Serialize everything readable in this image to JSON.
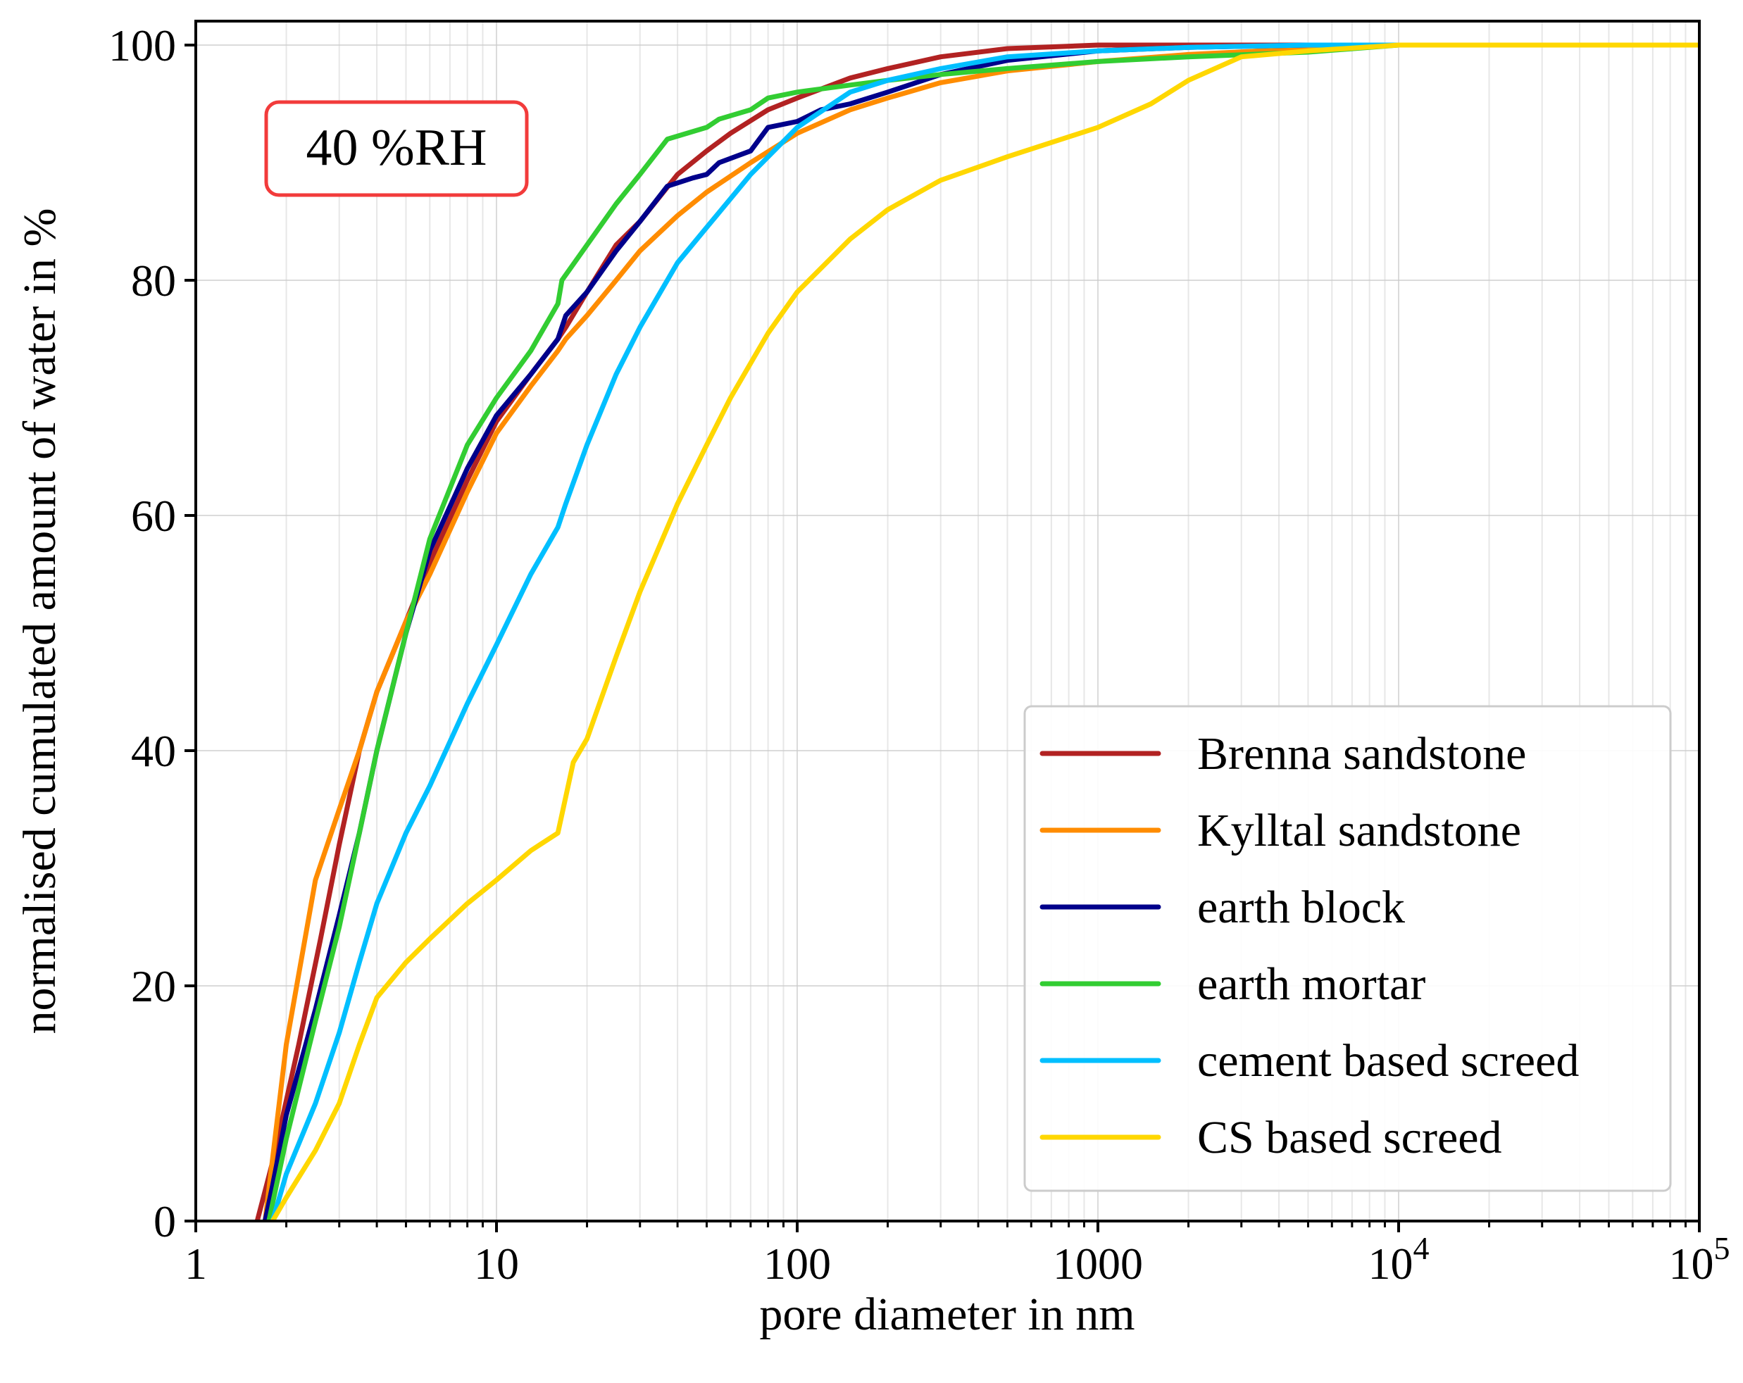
{
  "chart_data": {
    "type": "line",
    "annotation": "40 %RH",
    "xlabel": "pore diameter in nm",
    "ylabel": "normalised cumulated amount of water in %",
    "xscale": "log",
    "xlim": [
      1,
      100000
    ],
    "ylim": [
      0,
      100
    ],
    "grid": true,
    "legend_position": "lower-right",
    "x_ticks": [
      {
        "value": 1,
        "label": "1"
      },
      {
        "value": 10,
        "label": "10"
      },
      {
        "value": 100,
        "label": "100"
      },
      {
        "value": 1000,
        "label": "1000"
      },
      {
        "value": 10000,
        "label": "10",
        "exp": "4"
      },
      {
        "value": 100000,
        "label": "10",
        "exp": "5"
      }
    ],
    "y_ticks": [
      {
        "value": 0,
        "label": "0"
      },
      {
        "value": 20,
        "label": "20"
      },
      {
        "value": 40,
        "label": "40"
      },
      {
        "value": 60,
        "label": "60"
      },
      {
        "value": 80,
        "label": "80"
      },
      {
        "value": 100,
        "label": "100"
      }
    ],
    "series": [
      {
        "name": "Brenna sandstone",
        "color": "#b22222",
        "points": [
          [
            1.6,
            0
          ],
          [
            1.8,
            5
          ],
          [
            2.2,
            15
          ],
          [
            2.6,
            24
          ],
          [
            3.0,
            32
          ],
          [
            3.5,
            40
          ],
          [
            4.0,
            45
          ],
          [
            5.0,
            51
          ],
          [
            6.0,
            56
          ],
          [
            8.0,
            63
          ],
          [
            10,
            68
          ],
          [
            13,
            72
          ],
          [
            16,
            75
          ],
          [
            17,
            76
          ],
          [
            20,
            79
          ],
          [
            25,
            83
          ],
          [
            30,
            85
          ],
          [
            40,
            89
          ],
          [
            50,
            91
          ],
          [
            60,
            92.5
          ],
          [
            80,
            94.5
          ],
          [
            100,
            95.5
          ],
          [
            150,
            97.2
          ],
          [
            200,
            98
          ],
          [
            300,
            99
          ],
          [
            500,
            99.7
          ],
          [
            1000,
            100
          ],
          [
            100000,
            100
          ]
        ]
      },
      {
        "name": "Kylltal sandstone",
        "color": "#ff8c00",
        "points": [
          [
            1.7,
            0
          ],
          [
            2.0,
            15
          ],
          [
            2.5,
            29
          ],
          [
            3.0,
            35
          ],
          [
            3.5,
            40
          ],
          [
            4.0,
            45
          ],
          [
            5.0,
            51
          ],
          [
            6.0,
            55
          ],
          [
            8.0,
            62
          ],
          [
            10,
            67
          ],
          [
            13,
            71
          ],
          [
            16,
            74
          ],
          [
            17,
            75
          ],
          [
            20,
            77
          ],
          [
            25,
            80
          ],
          [
            30,
            82.5
          ],
          [
            40,
            85.5
          ],
          [
            50,
            87.5
          ],
          [
            70,
            90
          ],
          [
            100,
            92.5
          ],
          [
            150,
            94.5
          ],
          [
            200,
            95.5
          ],
          [
            300,
            96.8
          ],
          [
            500,
            97.8
          ],
          [
            1000,
            98.6
          ],
          [
            2000,
            99.2
          ],
          [
            5000,
            99.7
          ],
          [
            10000,
            100
          ],
          [
            100000,
            100
          ]
        ]
      },
      {
        "name": "earth block",
        "color": "#00008b",
        "points": [
          [
            1.7,
            0
          ],
          [
            1.8,
            3
          ],
          [
            2.0,
            9
          ],
          [
            2.5,
            18
          ],
          [
            3.0,
            26
          ],
          [
            3.5,
            33
          ],
          [
            4.0,
            40
          ],
          [
            5.0,
            50
          ],
          [
            6.0,
            57
          ],
          [
            8.0,
            64
          ],
          [
            10,
            68.5
          ],
          [
            13,
            72
          ],
          [
            16,
            75
          ],
          [
            17,
            77
          ],
          [
            20,
            79
          ],
          [
            25,
            82.5
          ],
          [
            30,
            85
          ],
          [
            37,
            88
          ],
          [
            45,
            88.7
          ],
          [
            50,
            89
          ],
          [
            55,
            90
          ],
          [
            70,
            91
          ],
          [
            80,
            93
          ],
          [
            100,
            93.5
          ],
          [
            120,
            94.5
          ],
          [
            150,
            95
          ],
          [
            200,
            96
          ],
          [
            300,
            97.5
          ],
          [
            500,
            98.7
          ],
          [
            1000,
            99.5
          ],
          [
            2000,
            99.8
          ],
          [
            5000,
            100
          ],
          [
            100000,
            100
          ]
        ]
      },
      {
        "name": "earth mortar",
        "color": "#32cd32",
        "points": [
          [
            1.75,
            0
          ],
          [
            2.0,
            7
          ],
          [
            2.5,
            17
          ],
          [
            3.0,
            25
          ],
          [
            3.5,
            33
          ],
          [
            4.0,
            40
          ],
          [
            5.0,
            50
          ],
          [
            6.0,
            58
          ],
          [
            8.0,
            66
          ],
          [
            10,
            70
          ],
          [
            13,
            74
          ],
          [
            16,
            78
          ],
          [
            16.5,
            80
          ],
          [
            20,
            83
          ],
          [
            25,
            86.5
          ],
          [
            30,
            89
          ],
          [
            37,
            92
          ],
          [
            50,
            93
          ],
          [
            55,
            93.7
          ],
          [
            70,
            94.5
          ],
          [
            80,
            95.5
          ],
          [
            100,
            96
          ],
          [
            150,
            96.6
          ],
          [
            200,
            97
          ],
          [
            300,
            97.5
          ],
          [
            500,
            98
          ],
          [
            1000,
            98.6
          ],
          [
            2000,
            99
          ],
          [
            5000,
            99.4
          ],
          [
            10000,
            100
          ],
          [
            100000,
            100
          ]
        ]
      },
      {
        "name": "cement based screed",
        "color": "#00bfff",
        "points": [
          [
            1.8,
            0
          ],
          [
            2.0,
            4
          ],
          [
            2.5,
            10
          ],
          [
            3.0,
            16
          ],
          [
            3.5,
            22
          ],
          [
            4.0,
            27
          ],
          [
            5.0,
            33
          ],
          [
            6.0,
            37
          ],
          [
            8.0,
            44
          ],
          [
            10,
            49
          ],
          [
            13,
            55
          ],
          [
            16,
            59
          ],
          [
            17,
            61
          ],
          [
            20,
            66
          ],
          [
            25,
            72
          ],
          [
            30,
            76
          ],
          [
            40,
            81.5
          ],
          [
            50,
            84.5
          ],
          [
            70,
            89
          ],
          [
            100,
            93
          ],
          [
            150,
            96
          ],
          [
            200,
            97
          ],
          [
            300,
            98
          ],
          [
            500,
            99
          ],
          [
            1000,
            99.5
          ],
          [
            2000,
            99.8
          ],
          [
            5000,
            100
          ],
          [
            100000,
            100
          ]
        ]
      },
      {
        "name": "CS based screed",
        "color": "#ffd700",
        "points": [
          [
            1.8,
            0
          ],
          [
            2.0,
            2
          ],
          [
            2.5,
            6
          ],
          [
            3.0,
            10
          ],
          [
            3.5,
            15
          ],
          [
            4.0,
            19
          ],
          [
            5.0,
            22
          ],
          [
            6.0,
            24
          ],
          [
            8.0,
            27
          ],
          [
            10,
            29
          ],
          [
            13,
            31.5
          ],
          [
            16,
            33
          ],
          [
            18,
            39
          ],
          [
            20,
            41
          ],
          [
            25,
            48
          ],
          [
            30,
            53.5
          ],
          [
            40,
            61
          ],
          [
            50,
            66
          ],
          [
            60,
            70
          ],
          [
            80,
            75.5
          ],
          [
            100,
            79
          ],
          [
            150,
            83.5
          ],
          [
            200,
            86
          ],
          [
            300,
            88.5
          ],
          [
            500,
            90.5
          ],
          [
            1000,
            93
          ],
          [
            1500,
            95
          ],
          [
            2000,
            97
          ],
          [
            3000,
            99
          ],
          [
            5000,
            99.5
          ],
          [
            10000,
            100
          ],
          [
            100000,
            100
          ]
        ]
      }
    ]
  }
}
